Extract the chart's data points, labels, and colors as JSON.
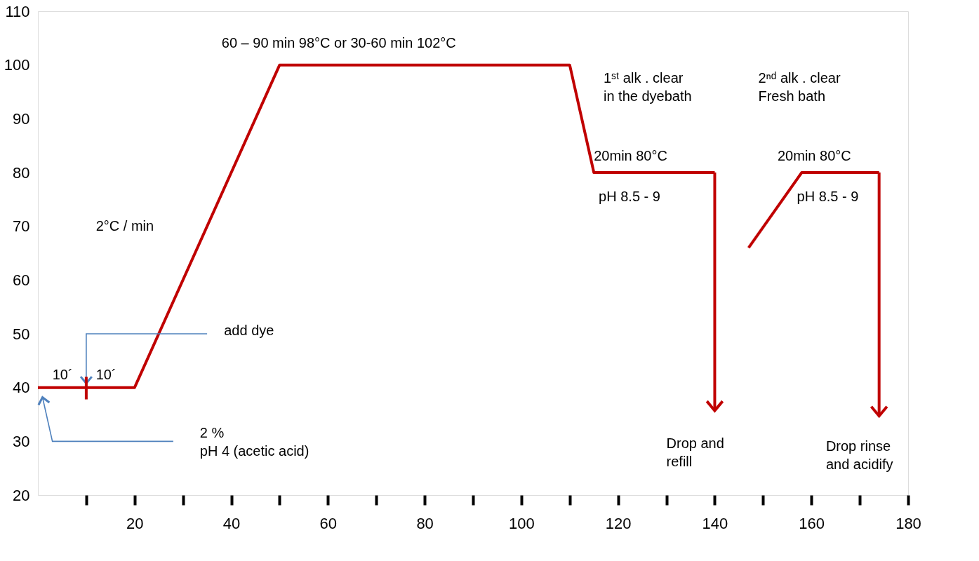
{
  "chart_data": {
    "type": "line",
    "xlim": [
      0,
      180
    ],
    "ylim": [
      20,
      110
    ],
    "xticks": [
      {
        "value": 10,
        "label": null
      },
      20,
      {
        "value": 30,
        "label": null
      },
      40,
      {
        "value": 50,
        "label": null
      },
      60,
      {
        "value": 70,
        "label": null
      },
      80,
      {
        "value": 90,
        "label": null
      },
      100,
      {
        "value": 110,
        "label": null
      },
      120,
      {
        "value": 130,
        "label": null
      },
      140,
      {
        "value": 150,
        "label": null
      },
      160,
      {
        "value": 170,
        "label": null
      },
      180
    ],
    "yticks": [
      20,
      30,
      40,
      50,
      60,
      70,
      80,
      90,
      100,
      110
    ],
    "grid": false,
    "marker": "none",
    "line_style": "solid",
    "series": [
      {
        "color": "#c00000",
        "x": [
          0,
          20,
          50,
          110,
          115,
          140
        ],
        "values": [
          40,
          40,
          100,
          100,
          80,
          80
        ]
      },
      {
        "color": "#c00000",
        "x": [
          147,
          158,
          174
        ],
        "values": [
          66,
          80,
          80
        ]
      }
    ],
    "annotations": [
      "10´",
      "10´",
      "2°C / min",
      "60 – 90 min 98°C or 30-60 min 102°C",
      "1ˢᵗ alk . clear\nin the dyebath",
      "2ⁿᵈ alk . clear\nFresh bath",
      "20min 80°C",
      "20min 80°C",
      "pH 8.5 - 9",
      "pH 8.5 - 9",
      "add dye",
      "2 %\npH 4 (acetic acid)",
      "Drop and\nrefill",
      "Drop rinse\nand acidify"
    ]
  }
}
